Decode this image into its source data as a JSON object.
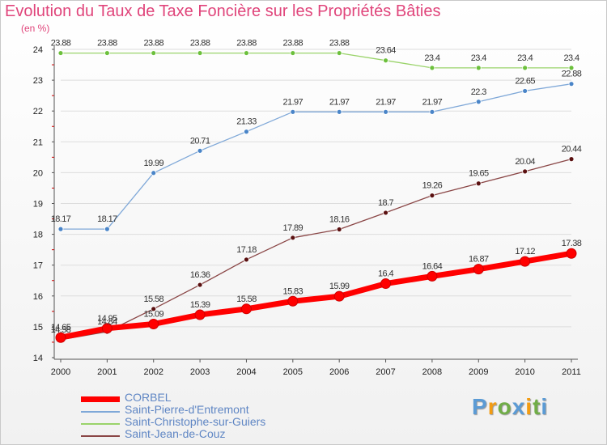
{
  "title": "Evolution du Taux de Taxe Foncière sur les Propriétés Bâties",
  "unit_label": "(en %)",
  "colors": {
    "title": "#e0457b",
    "axis": "#555555",
    "minor_tick": "#cc0000",
    "grid": "#dddddd",
    "legend_text": "#5f86c4"
  },
  "logo": {
    "letters": [
      {
        "char": "P",
        "color": "#5b9bd5"
      },
      {
        "char": "r",
        "color": "#f39c12"
      },
      {
        "char": "o",
        "color": "#70ad47"
      },
      {
        "char": "x",
        "color": "#5b9bd5"
      },
      {
        "char": "i",
        "color": "#f39c12"
      },
      {
        "char": "t",
        "color": "#70ad47"
      },
      {
        "char": "i",
        "color": "#5b9bd5"
      }
    ]
  },
  "chart_data": {
    "type": "line",
    "x": [
      2000,
      2001,
      2002,
      2003,
      2004,
      2005,
      2006,
      2007,
      2008,
      2009,
      2010,
      2011
    ],
    "ylim": [
      14,
      24
    ],
    "yticks": [
      14,
      15,
      16,
      17,
      18,
      19,
      20,
      21,
      22,
      23,
      24
    ],
    "grid": "horizontal",
    "legend_position": "bottom-left",
    "series": [
      {
        "name": "CORBEL",
        "color": "#ff0000",
        "marker_color": "#ff0000",
        "bold": true,
        "values": [
          14.65,
          14.95,
          15.09,
          15.39,
          15.58,
          15.83,
          15.99,
          16.4,
          16.64,
          16.87,
          17.12,
          17.38
        ],
        "labels": [
          "14.65",
          "14.95",
          "15.09",
          "15.39",
          "15.58",
          "15.83",
          "15.99",
          "16.4",
          "16.64",
          "16.87",
          "17.12",
          "17.38"
        ]
      },
      {
        "name": "Saint-Pierre-d'Entremont",
        "color": "#7fa8d8",
        "marker_color": "#4a85c8",
        "bold": false,
        "values": [
          18.17,
          18.17,
          19.99,
          20.71,
          21.33,
          21.97,
          21.97,
          21.97,
          21.97,
          22.3,
          22.65,
          22.88
        ],
        "labels": [
          "18.17",
          "18.17",
          "19.99",
          "20.71",
          "21.33",
          "21.97",
          "21.97",
          "21.97",
          "21.97",
          "22.3",
          "22.65",
          "22.88"
        ]
      },
      {
        "name": "Saint-Christophe-sur-Guiers",
        "color": "#9ad36a",
        "marker_color": "#6cc03c",
        "bold": false,
        "values": [
          23.88,
          23.88,
          23.88,
          23.88,
          23.88,
          23.88,
          23.88,
          23.64,
          23.4,
          23.4,
          23.4,
          23.4
        ],
        "labels": [
          "23.88",
          "23.88",
          "23.88",
          "23.88",
          "23.88",
          "23.88",
          "23.88",
          "23.64",
          "23.4",
          "23.4",
          "23.4",
          "23.4"
        ]
      },
      {
        "name": "Saint-Jean-de-Couz",
        "color": "#8a4646",
        "marker_color": "#5a1010",
        "bold": false,
        "values": [
          14.58,
          14.84,
          15.58,
          16.36,
          17.18,
          17.89,
          18.16,
          18.7,
          19.26,
          19.65,
          20.04,
          20.44
        ],
        "labels": [
          "14.58",
          "14.84",
          "15.58",
          "16.36",
          "17.18",
          "17.89",
          "18.16",
          "18.7",
          "19.26",
          "19.65",
          "20.04",
          "20.44"
        ]
      }
    ]
  }
}
